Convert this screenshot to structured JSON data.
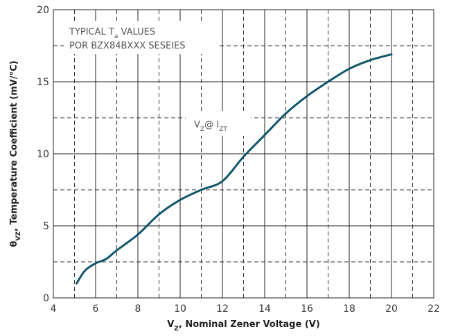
{
  "chart_data": {
    "type": "line",
    "x": [
      5.1,
      5.5,
      6,
      6.5,
      7,
      8,
      9,
      10,
      11,
      12,
      13,
      14,
      15,
      16,
      17,
      18,
      19,
      20
    ],
    "series": [
      {
        "color": "#0f566a",
        "values": [
          1.0,
          1.9,
          2.4,
          2.7,
          3.3,
          4.4,
          5.8,
          6.8,
          7.5,
          8.1,
          9.8,
          11.3,
          12.8,
          14.0,
          15.0,
          15.9,
          16.5,
          16.9
        ]
      }
    ],
    "xlim": [
      4,
      22
    ],
    "xticks": [
      4,
      6,
      8,
      10,
      12,
      14,
      16,
      18,
      20,
      22
    ],
    "ylim": [
      0,
      20
    ],
    "yticks": [
      0,
      5,
      10,
      15,
      20
    ],
    "xminor": [
      5,
      7,
      9,
      11,
      13,
      15,
      17,
      19,
      21
    ],
    "yminor": [
      2.5,
      7.5,
      12.5,
      17.5
    ],
    "grid": true,
    "xlabel": [
      "V",
      "Z",
      ", Nominal Zener Voltage (V)"
    ],
    "ylabel": [
      "θ",
      "VZ",
      ", Temperature Coefficient (mV/°C)"
    ],
    "annotations": [
      [
        "TYPICAL T",
        "a",
        " VALUES"
      ],
      [
        "POR BZX84BXXX SESEIES"
      ],
      [
        "V",
        "Z",
        "@ I",
        "ZT"
      ]
    ]
  }
}
